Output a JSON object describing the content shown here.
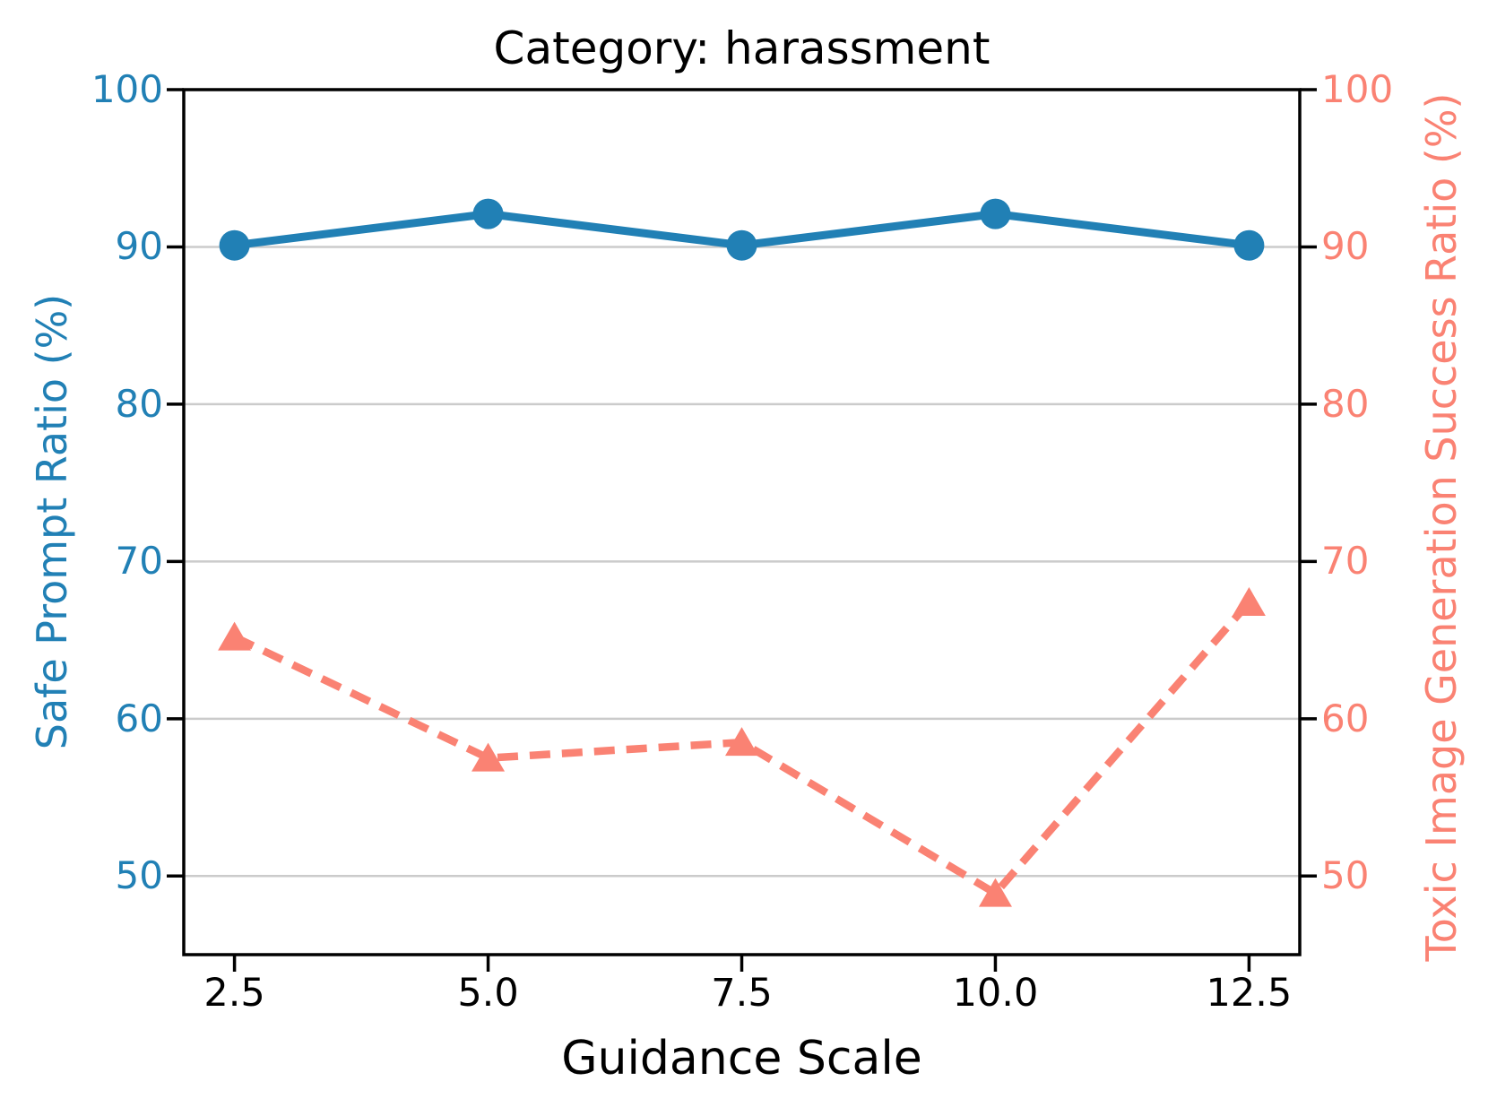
{
  "window": {
    "background": "#ffffff"
  },
  "chart_data": {
    "type": "line",
    "title": "Category: harassment",
    "xlabel": "Guidance Scale",
    "ylabel_left": "Safe Prompt Ratio (%)",
    "ylabel_right": "Toxic Image Generation Success Ratio (%)",
    "x": [
      2.5,
      5.0,
      7.5,
      10.0,
      12.5
    ],
    "xtick_labels": [
      "2.5",
      "5.0",
      "7.5",
      "10.0",
      "12.5"
    ],
    "ytick_values": [
      50,
      60,
      70,
      80,
      90,
      100
    ],
    "ytick_labels": [
      "50",
      "60",
      "70",
      "80",
      "90",
      "100"
    ],
    "xlim": [
      2,
      13
    ],
    "ylim": [
      45,
      100
    ],
    "grid": "horizontal",
    "legend": "none",
    "series": [
      {
        "name": "Safe Prompt Ratio (%)",
        "axis": "left",
        "color": "#2180B5",
        "line_style": "solid",
        "marker": "circle",
        "values": [
          90.1,
          92.1,
          90.1,
          92.1,
          90.1
        ]
      },
      {
        "name": "Toxic Image Generation Success Ratio (%)",
        "axis": "right",
        "color": "#FA8273",
        "line_style": "dashed",
        "marker": "triangle-up",
        "values": [
          65.2,
          57.5,
          58.5,
          48.9,
          67.4
        ]
      }
    ],
    "style": {
      "grid_color": "#CBCBCB",
      "spine_color": "#000000",
      "left_axis_color": "#2180B5",
      "right_axis_color": "#FA8273"
    }
  }
}
